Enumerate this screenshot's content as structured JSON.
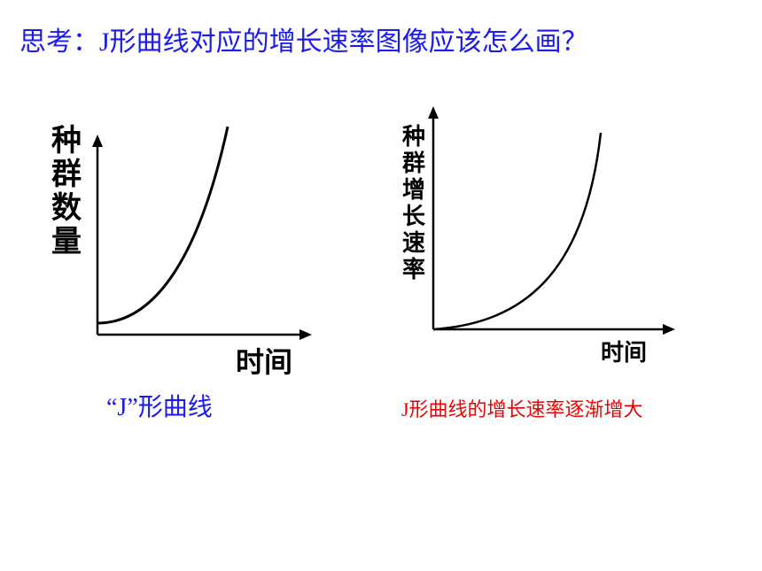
{
  "title": "思考：J形曲线对应的增长速率图像应该怎么画？",
  "left_graph": {
    "y_label": "种群数量",
    "x_label": "时间",
    "caption": "“J”形曲线"
  },
  "right_graph": {
    "y_label": "种群增长速率",
    "x_label": "时间",
    "caption": "J形曲线的增长速率逐渐增大"
  }
}
